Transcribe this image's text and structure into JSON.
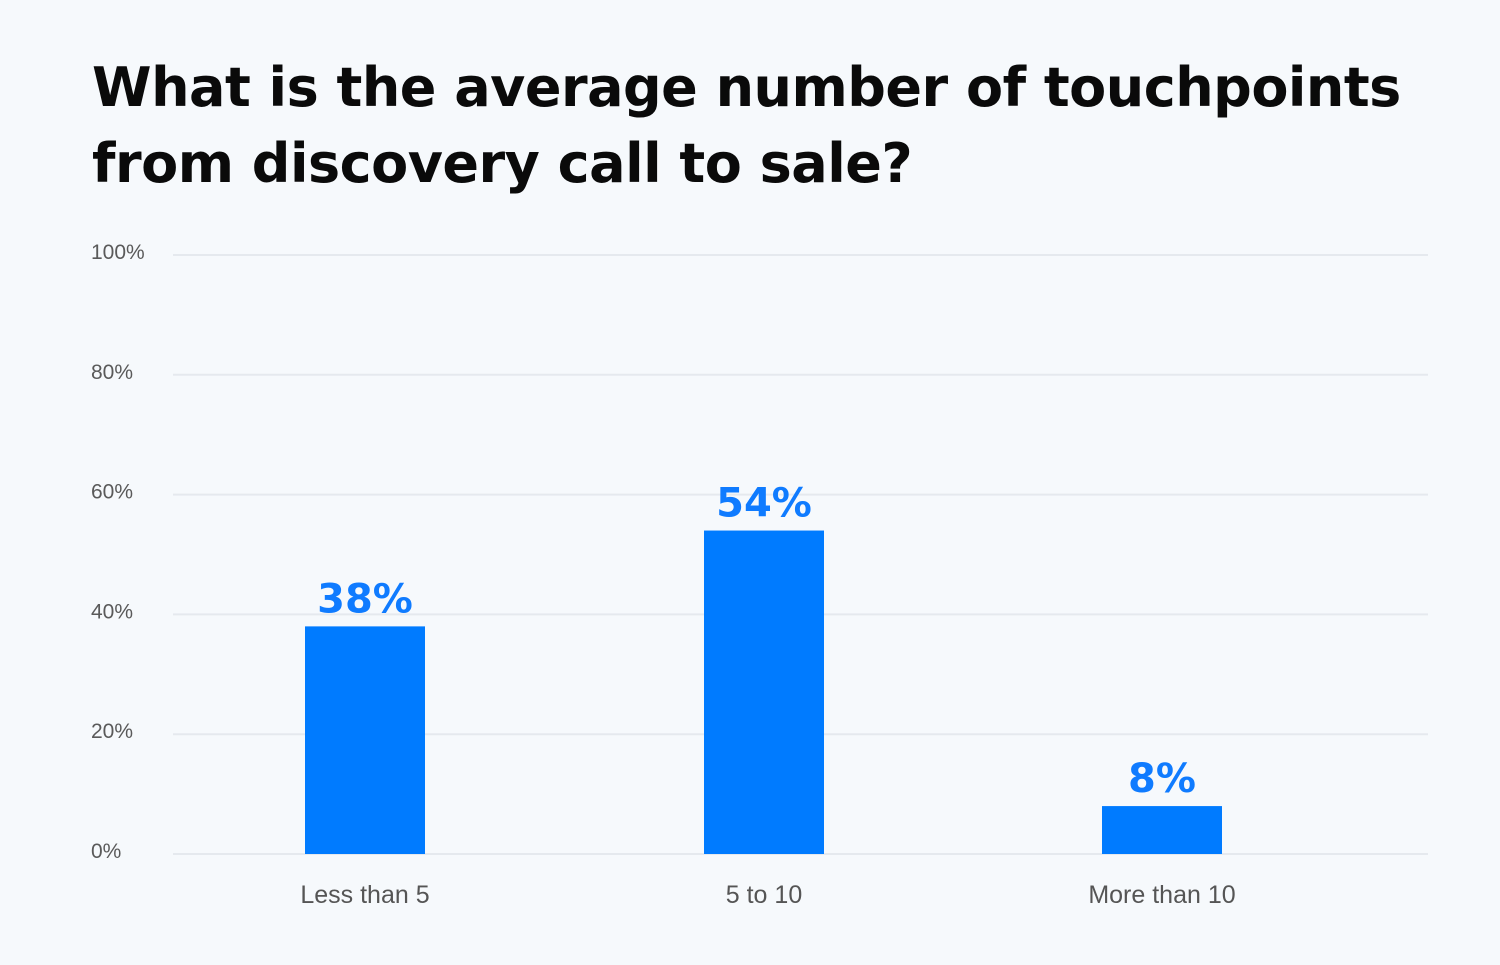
{
  "title": "What is the average number of touchpoints from discovery call to sale?",
  "colors": {
    "background": "#f6f9fc",
    "bar": "#007bff",
    "value_label": "#0f7bff",
    "gridline": "#e5e9ee"
  },
  "chart_data": {
    "type": "bar",
    "title": "What is the average number of touchpoints from discovery call to sale?",
    "xlabel": "",
    "ylabel": "",
    "categories": [
      "Less than 5",
      "5 to 10",
      "More than 10"
    ],
    "values": [
      38,
      54,
      8
    ],
    "value_labels": [
      "38%",
      "54%",
      "8%"
    ],
    "ylim": [
      0,
      100
    ],
    "yticks": [
      0,
      20,
      40,
      60,
      80,
      100
    ],
    "ytick_labels": [
      "0%",
      "20%",
      "40%",
      "60%",
      "80%",
      "100%"
    ],
    "grid": true,
    "legend": "none"
  }
}
